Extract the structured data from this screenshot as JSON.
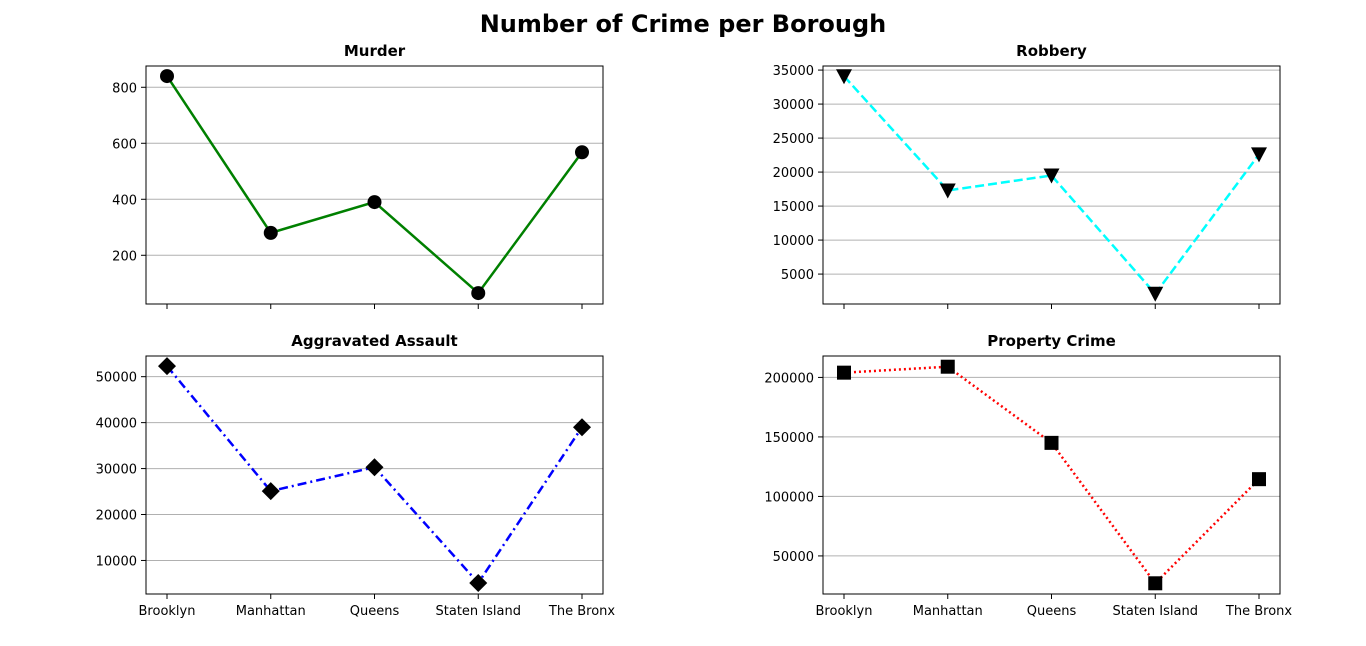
{
  "figure": {
    "title": "Number of Crime per Borough"
  },
  "chart_data": [
    {
      "type": "line",
      "title": "Murder",
      "xlabel": "",
      "ylabel": "",
      "categories": [
        "Brooklyn",
        "Manhattan",
        "Queens",
        "Staten Island",
        "The Bronx"
      ],
      "values": [
        840,
        280,
        390,
        65,
        568
      ],
      "ylim": [
        26,
        876
      ],
      "yticks": [
        200,
        400,
        600,
        800
      ],
      "show_x_labels": false,
      "grid": "y",
      "line_color": "#008000",
      "line_style": "solid",
      "marker": "circle",
      "marker_color": "#000000"
    },
    {
      "type": "line",
      "title": "Robbery",
      "xlabel": "",
      "ylabel": "",
      "categories": [
        "Brooklyn",
        "Manhattan",
        "Queens",
        "Staten Island",
        "The Bronx"
      ],
      "values": [
        34100,
        17300,
        19500,
        2100,
        22600
      ],
      "ylim": [
        600,
        35600
      ],
      "yticks": [
        5000,
        10000,
        15000,
        20000,
        25000,
        30000,
        35000
      ],
      "show_x_labels": false,
      "grid": "y",
      "line_color": "#00ffff",
      "line_style": "dashed",
      "marker": "triangle-down",
      "marker_color": "#000000"
    },
    {
      "type": "line",
      "title": "Aggravated Assault",
      "xlabel": "",
      "ylabel": "",
      "categories": [
        "Brooklyn",
        "Manhattan",
        "Queens",
        "Staten Island",
        "The Bronx"
      ],
      "values": [
        52300,
        25100,
        30300,
        5100,
        39000
      ],
      "ylim": [
        2700,
        54500
      ],
      "yticks": [
        10000,
        20000,
        30000,
        40000,
        50000
      ],
      "show_x_labels": true,
      "grid": "y",
      "line_color": "#0000ff",
      "line_style": "dashdot",
      "marker": "diamond",
      "marker_color": "#000000"
    },
    {
      "type": "line",
      "title": "Property Crime",
      "xlabel": "",
      "ylabel": "",
      "categories": [
        "Brooklyn",
        "Manhattan",
        "Queens",
        "Staten Island",
        "The Bronx"
      ],
      "values": [
        204000,
        209000,
        145000,
        27000,
        114500
      ],
      "ylim": [
        18000,
        218000
      ],
      "yticks": [
        50000,
        100000,
        150000,
        200000
      ],
      "show_x_labels": true,
      "grid": "y",
      "line_color": "#ff0000",
      "line_style": "dotted",
      "marker": "square",
      "marker_color": "#000000"
    }
  ]
}
